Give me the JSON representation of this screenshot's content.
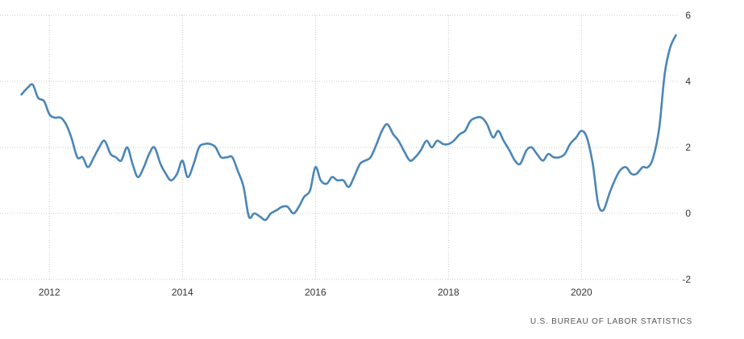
{
  "chart_data": {
    "type": "line",
    "title": "",
    "xlabel": "",
    "ylabel": "",
    "xlim": [
      2011.5,
      2021.45
    ],
    "ylim": [
      -2,
      6
    ],
    "x_ticks": [
      2012,
      2014,
      2016,
      2018,
      2020
    ],
    "x_tick_labels": [
      "2012",
      "2014",
      "2016",
      "2018",
      "2020"
    ],
    "y_ticks": [
      -2,
      0,
      2,
      4,
      6
    ],
    "y_tick_labels": [
      "-2",
      "0",
      "2",
      "4",
      "6"
    ],
    "grid": "dotted",
    "color": "#4a86b8",
    "series": [
      {
        "x": [
          2011.58,
          2011.67,
          2011.75,
          2011.83,
          2011.92,
          2012.0,
          2012.08,
          2012.17,
          2012.25,
          2012.33,
          2012.42,
          2012.5,
          2012.58,
          2012.67,
          2012.75,
          2012.83,
          2012.92,
          2013.0,
          2013.08,
          2013.17,
          2013.25,
          2013.33,
          2013.42,
          2013.5,
          2013.58,
          2013.67,
          2013.75,
          2013.83,
          2013.92,
          2014.0,
          2014.08,
          2014.17,
          2014.25,
          2014.33,
          2014.42,
          2014.5,
          2014.58,
          2014.67,
          2014.75,
          2014.83,
          2014.92,
          2015.0,
          2015.08,
          2015.17,
          2015.25,
          2015.33,
          2015.42,
          2015.5,
          2015.58,
          2015.67,
          2015.75,
          2015.83,
          2015.92,
          2016.0,
          2016.08,
          2016.17,
          2016.25,
          2016.33,
          2016.42,
          2016.5,
          2016.58,
          2016.67,
          2016.75,
          2016.83,
          2016.92,
          2017.0,
          2017.08,
          2017.17,
          2017.25,
          2017.33,
          2017.42,
          2017.5,
          2017.58,
          2017.67,
          2017.75,
          2017.83,
          2017.92,
          2018.0,
          2018.08,
          2018.17,
          2018.25,
          2018.33,
          2018.42,
          2018.5,
          2018.58,
          2018.67,
          2018.75,
          2018.83,
          2018.92,
          2019.0,
          2019.08,
          2019.17,
          2019.25,
          2019.33,
          2019.42,
          2019.5,
          2019.58,
          2019.67,
          2019.75,
          2019.83,
          2019.92,
          2020.0,
          2020.08,
          2020.17,
          2020.25,
          2020.33,
          2020.42,
          2020.5,
          2020.58,
          2020.67,
          2020.75,
          2020.83,
          2020.92,
          2021.0,
          2021.08,
          2021.17,
          2021.25,
          2021.33,
          2021.42
        ],
        "values": [
          3.6,
          3.8,
          3.9,
          3.5,
          3.4,
          3.0,
          2.9,
          2.9,
          2.7,
          2.3,
          1.7,
          1.7,
          1.4,
          1.7,
          2.0,
          2.2,
          1.8,
          1.7,
          1.6,
          2.0,
          1.5,
          1.1,
          1.4,
          1.8,
          2.0,
          1.5,
          1.2,
          1.0,
          1.2,
          1.6,
          1.1,
          1.5,
          2.0,
          2.1,
          2.1,
          2.0,
          1.7,
          1.7,
          1.7,
          1.3,
          0.8,
          -0.1,
          0.0,
          -0.1,
          -0.2,
          0.0,
          0.1,
          0.2,
          0.2,
          0.0,
          0.2,
          0.5,
          0.7,
          1.4,
          1.0,
          0.9,
          1.1,
          1.0,
          1.0,
          0.8,
          1.1,
          1.5,
          1.6,
          1.7,
          2.1,
          2.5,
          2.7,
          2.4,
          2.2,
          1.9,
          1.6,
          1.7,
          1.9,
          2.2,
          2.0,
          2.2,
          2.1,
          2.1,
          2.2,
          2.4,
          2.5,
          2.8,
          2.9,
          2.9,
          2.7,
          2.3,
          2.5,
          2.2,
          1.9,
          1.6,
          1.5,
          1.9,
          2.0,
          1.8,
          1.6,
          1.8,
          1.7,
          1.7,
          1.8,
          2.1,
          2.3,
          2.5,
          2.3,
          1.5,
          0.3,
          0.1,
          0.6,
          1.0,
          1.3,
          1.4,
          1.2,
          1.2,
          1.4,
          1.4,
          1.7,
          2.6,
          4.2,
          5.0,
          5.4
        ]
      }
    ]
  },
  "source": "U.S. BUREAU OF LABOR STATISTICS"
}
